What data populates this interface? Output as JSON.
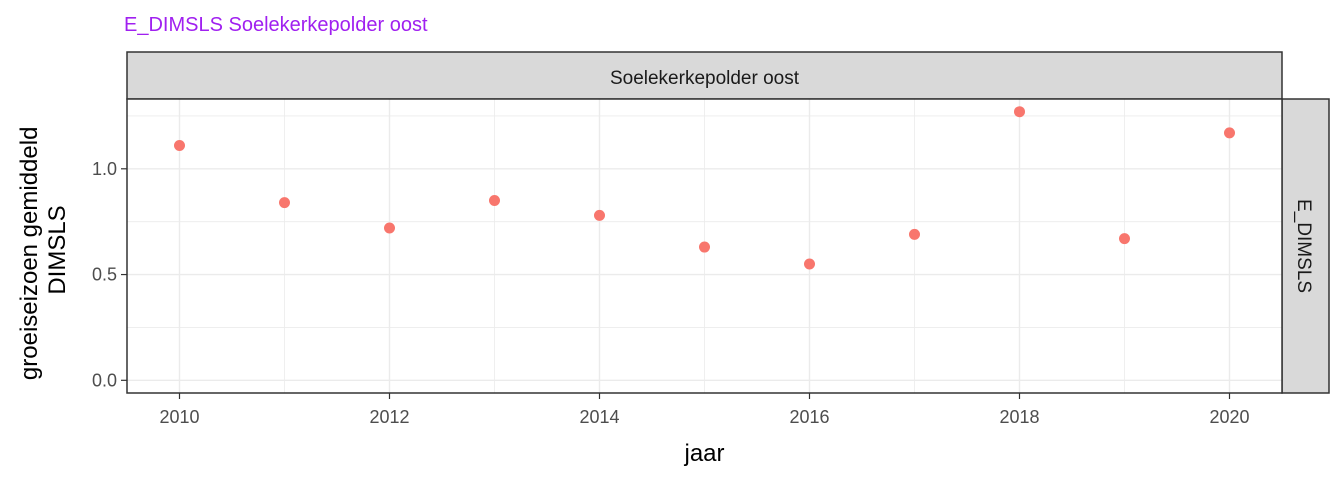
{
  "title": "E_DIMSLS Soelekerkepolder oost",
  "colors": {
    "title": "#a020f0",
    "points": "#f8766d",
    "strip_bg": "#d9d9d9",
    "grid": "#ebebeb",
    "border": "#333333"
  },
  "chart_data": {
    "type": "scatter",
    "title": "E_DIMSLS Soelekerkepolder oost",
    "facet_top": "Soelekerkepolder oost",
    "facet_right": "E_DIMSLS",
    "xlabel": "jaar",
    "ylabel": "groeiseizoen gemiddeld\nDIMSLS",
    "xlim": [
      2009.5,
      2020.5
    ],
    "ylim": [
      -0.06,
      1.33
    ],
    "x_ticks": [
      2010,
      2012,
      2014,
      2016,
      2018,
      2020
    ],
    "y_ticks": [
      0.0,
      0.5,
      1.0
    ],
    "y_tick_labels": [
      "0.0",
      "0.5",
      "1.0"
    ],
    "grid": true,
    "series": [
      {
        "x": [
          2010,
          2011,
          2012,
          2013,
          2014,
          2015,
          2016,
          2017,
          2018,
          2019,
          2020
        ],
        "y": [
          1.11,
          0.84,
          0.72,
          0.85,
          0.78,
          0.63,
          0.55,
          0.69,
          1.27,
          0.67,
          1.17
        ]
      }
    ]
  }
}
